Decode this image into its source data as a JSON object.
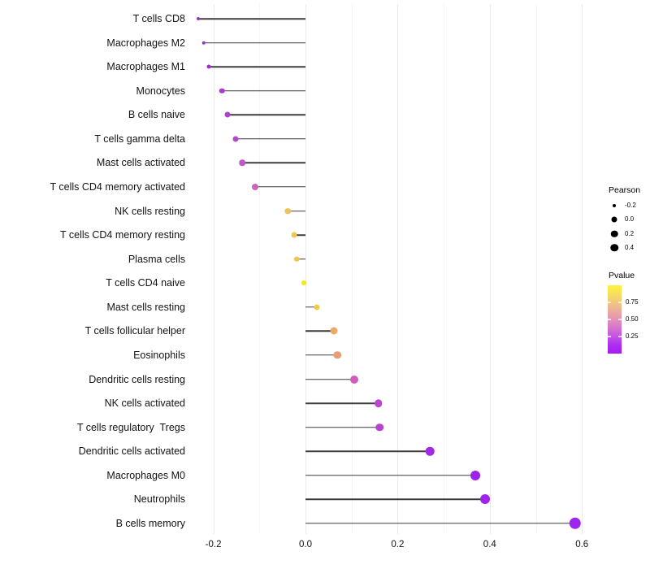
{
  "chart_data": {
    "type": "scatter",
    "subtype": "lollipop",
    "orientation": "horizontal",
    "title": "",
    "xlabel": "",
    "ylabel": "",
    "grid": "vertical-only",
    "xlim": [
      -0.27,
      0.66
    ],
    "x_ticks": [
      {
        "v": -0.2,
        "label": "-0.2"
      },
      {
        "v": 0.0,
        "label": "0.0"
      },
      {
        "v": 0.2,
        "label": "0.2"
      },
      {
        "v": 0.4,
        "label": "0.4"
      },
      {
        "v": 0.6,
        "label": "0.6"
      }
    ],
    "x_minor_ticks": [
      -0.1,
      0.1,
      0.3,
      0.5
    ],
    "points": [
      {
        "label": "T cells CD8",
        "pearson": -0.232,
        "color": "#9b2fd3",
        "size": 4
      },
      {
        "label": "Macrophages M2",
        "pearson": -0.221,
        "color": "#9f33d2",
        "size": 4.5
      },
      {
        "label": "Macrophages M1",
        "pearson": -0.21,
        "color": "#9c30d4",
        "size": 5
      },
      {
        "label": "Monocytes",
        "pearson": -0.181,
        "color": "#a83ad1",
        "size": 6.5
      },
      {
        "label": "B cells naive",
        "pearson": -0.169,
        "color": "#ae41cd",
        "size": 7
      },
      {
        "label": "T cells gamma delta",
        "pearson": -0.152,
        "color": "#b348ca",
        "size": 7
      },
      {
        "label": "Mast cells activated",
        "pearson": -0.137,
        "color": "#be58c3",
        "size": 7.5
      },
      {
        "label": "T cells CD4 memory activated",
        "pearson": -0.109,
        "color": "#c767bb",
        "size": 8
      },
      {
        "label": "NK cells resting",
        "pearson": -0.038,
        "color": "#edc45c",
        "size": 7.5
      },
      {
        "label": "T cells CD4 memory resting",
        "pearson": -0.024,
        "color": "#efc854",
        "size": 7
      },
      {
        "label": "Plasma cells",
        "pearson": -0.019,
        "color": "#eec654",
        "size": 6.5
      },
      {
        "label": "T cells CD4 naive",
        "pearson": -0.003,
        "color": "#f6e90d",
        "size": 6
      },
      {
        "label": "Mast cells resting",
        "pearson": 0.025,
        "color": "#f0cc45",
        "size": 7
      },
      {
        "label": "T cells follicular helper",
        "pearson": 0.062,
        "color": "#eea865",
        "size": 9
      },
      {
        "label": "Eosinophils",
        "pearson": 0.069,
        "color": "#e99c76",
        "size": 9.5
      },
      {
        "label": "Dendritic cells resting",
        "pearson": 0.105,
        "color": "#d05dba",
        "size": 10
      },
      {
        "label": "NK cells activated",
        "pearson": 0.158,
        "color": "#bb45d2",
        "size": 9.5
      },
      {
        "label": "T cells regulatory  Tregs",
        "pearson": 0.161,
        "color": "#b840d4",
        "size": 9.5
      },
      {
        "label": "Dendritic cells activated",
        "pearson": 0.27,
        "color": "#a02be2",
        "size": 10.5
      },
      {
        "label": "Macrophages M0",
        "pearson": 0.369,
        "color": "#9d24e7",
        "size": 12
      },
      {
        "label": "Neutrophils",
        "pearson": 0.389,
        "color": "#9e25e9",
        "size": 12
      },
      {
        "label": "B cells memory",
        "pearson": 0.585,
        "color": "#9d27ee",
        "size": 14.5
      }
    ],
    "legend_pearson": {
      "title": "Pearson",
      "items": [
        {
          "label": "-0.2",
          "size": 4
        },
        {
          "label": "0.0",
          "size": 7
        },
        {
          "label": "0.2",
          "size": 8.5
        },
        {
          "label": "0.4",
          "size": 9.5
        }
      ]
    },
    "legend_pvalue": {
      "title": "Pvalue",
      "labels": [
        {
          "label": "0.75",
          "t": 0.75
        },
        {
          "label": "0.50",
          "t": 0.5
        },
        {
          "label": "0.25",
          "t": 0.25
        }
      ],
      "gradient_top_to_bottom": [
        "#fcf438",
        "#f7df5e",
        "#f1c77e",
        "#ebad9b",
        "#e392b8",
        "#d673cf",
        "#c253e2",
        "#ac2ef0",
        "#a51bf3"
      ],
      "range_top_to_bottom": [
        1.0,
        0.0
      ]
    }
  }
}
